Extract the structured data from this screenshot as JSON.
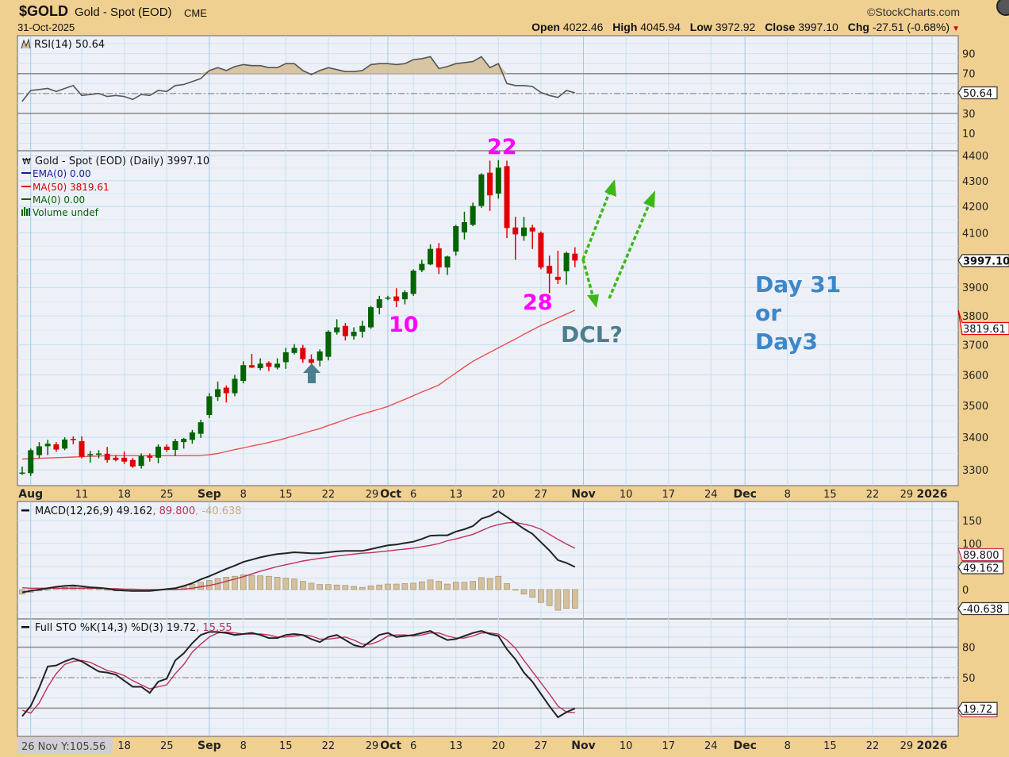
{
  "header": {
    "symbol": "$GOLD",
    "name": "Gold - Spot (EOD)",
    "exchange": "CME",
    "date": "31-Oct-2025",
    "copyright": "©StockCharts.com",
    "open_label": "Open",
    "open": "4022.46",
    "high_label": "High",
    "high": "4045.94",
    "low_label": "Low",
    "low": "3972.92",
    "close_label": "Close",
    "close": "3997.10",
    "chg_label": "Chg",
    "chg": "-27.51 (-0.68%)",
    "chg_direction": "down"
  },
  "legends": {
    "rsi": "RSI(14) 50.64",
    "price": "Gold - Spot (EOD) (Daily) 3997.10",
    "ema": "EMA(0) 0.00",
    "ma50": "MA(50) 3819.61",
    "ma0": "MA(0) 0.00",
    "volume": "Volume undef",
    "macd_name": "MACD(12,26,9) 49.162",
    "macd_signal": ", 89.800",
    "macd_hist": ", -40.638",
    "sto_name": "Full STO %K(14,3) %D(3) 19.72",
    "sto_d": ", 15.55"
  },
  "cursor_readout": "26 Nov Y:105.56",
  "annotations": {
    "peak_label": "22",
    "low_label_10": "10",
    "low_label_28": "28",
    "dcl": "DCL?",
    "day_line1": "Day 31",
    "day_line2": "or",
    "day_line3": "Day3",
    "magenta": "#ff00ff",
    "dcl_color": "#4a7f8f",
    "day_color": "#3d87c9",
    "arrow_color": "#3cb814",
    "marker_arrow_color": "#4a7f8f"
  },
  "colors": {
    "background": "#f0d091",
    "panel": "#eef0f8",
    "up_candle": "#006400",
    "down_candle": "#e00000",
    "ma50": "#e85050",
    "macd": "#222222",
    "signal": "#c0305a",
    "histogram": "#d4c09a",
    "rsi_fill": "#d4c09a"
  },
  "chart_data": [
    {
      "type": "line",
      "title": "RSI(14) 50.64",
      "ylim": [
        0,
        100
      ],
      "y_ticks": [
        90,
        70,
        30,
        10
      ],
      "reference_lines": [
        70,
        50,
        30
      ],
      "last_value_tag": "50.64",
      "values": [
        42,
        53,
        54,
        55,
        52,
        55,
        58,
        48,
        49,
        50,
        47,
        48,
        47,
        44,
        49,
        48,
        53,
        52,
        58,
        59,
        62,
        65,
        73,
        76,
        73,
        77,
        79,
        78,
        78,
        76,
        76,
        80,
        80,
        73,
        69,
        73,
        76,
        74,
        72,
        72,
        73,
        79,
        80,
        80,
        79,
        80,
        84,
        85,
        87,
        75,
        77,
        80,
        81,
        82,
        87,
        76,
        80,
        60,
        58,
        58,
        57,
        51,
        48,
        46,
        53,
        50.64
      ]
    },
    {
      "type": "candlestick",
      "title": "Gold - Spot (EOD) (Daily) 3997.10",
      "scale": "log",
      "ylim": [
        3250,
        4450
      ],
      "y_ticks": [
        4400,
        4300,
        4200,
        4100,
        3900,
        3800,
        3700,
        3600,
        3500,
        3400,
        3300
      ],
      "last_value_tags": [
        "3997.10",
        "3819.61"
      ],
      "dates": [
        "2025-07-31",
        "2025-08-01",
        "2025-08-04",
        "2025-08-05",
        "2025-08-06",
        "2025-08-07",
        "2025-08-08",
        "2025-08-11",
        "2025-08-12",
        "2025-08-13",
        "2025-08-14",
        "2025-08-15",
        "2025-08-18",
        "2025-08-19",
        "2025-08-20",
        "2025-08-21",
        "2025-08-22",
        "2025-08-25",
        "2025-08-26",
        "2025-08-27",
        "2025-08-28",
        "2025-08-29",
        "2025-09-02",
        "2025-09-03",
        "2025-09-04",
        "2025-09-05",
        "2025-09-08",
        "2025-09-09",
        "2025-09-10",
        "2025-09-11",
        "2025-09-12",
        "2025-09-15",
        "2025-09-16",
        "2025-09-17",
        "2025-09-18",
        "2025-09-19",
        "2025-09-22",
        "2025-09-23",
        "2025-09-24",
        "2025-09-25",
        "2025-09-26",
        "2025-09-29",
        "2025-09-30",
        "2025-10-01",
        "2025-10-02",
        "2025-10-03",
        "2025-10-06",
        "2025-10-07",
        "2025-10-08",
        "2025-10-09",
        "2025-10-10",
        "2025-10-13",
        "2025-10-14",
        "2025-10-15",
        "2025-10-16",
        "2025-10-17",
        "2025-10-20",
        "2025-10-21",
        "2025-10-22",
        "2025-10-23",
        "2025-10-24",
        "2025-10-27",
        "2025-10-28",
        "2025-10-29",
        "2025-10-30",
        "2025-10-31"
      ],
      "ohlc": [
        [
          3290,
          3310,
          3285,
          3292
        ],
        [
          3290,
          3365,
          3282,
          3360
        ],
        [
          3345,
          3385,
          3335,
          3372
        ],
        [
          3372,
          3392,
          3345,
          3380
        ],
        [
          3378,
          3385,
          3355,
          3362
        ],
        [
          3365,
          3400,
          3360,
          3393
        ],
        [
          3395,
          3403,
          3378,
          3393
        ],
        [
          3388,
          3403,
          3335,
          3340
        ],
        [
          3344,
          3358,
          3322,
          3348
        ],
        [
          3346,
          3360,
          3335,
          3350
        ],
        [
          3349,
          3370,
          3322,
          3330
        ],
        [
          3337,
          3345,
          3326,
          3330
        ],
        [
          3337,
          3356,
          3318,
          3325
        ],
        [
          3330,
          3336,
          3306,
          3310
        ],
        [
          3312,
          3350,
          3304,
          3342
        ],
        [
          3344,
          3350,
          3325,
          3337
        ],
        [
          3337,
          3378,
          3320,
          3371
        ],
        [
          3371,
          3378,
          3355,
          3361
        ],
        [
          3361,
          3395,
          3342,
          3388
        ],
        [
          3385,
          3398,
          3365,
          3395
        ],
        [
          3392,
          3423,
          3380,
          3415
        ],
        [
          3411,
          3455,
          3398,
          3447
        ],
        [
          3470,
          3540,
          3460,
          3530
        ],
        [
          3528,
          3578,
          3515,
          3553
        ],
        [
          3558,
          3565,
          3510,
          3540
        ],
        [
          3540,
          3600,
          3530,
          3587
        ],
        [
          3580,
          3645,
          3572,
          3632
        ],
        [
          3632,
          3670,
          3622,
          3624
        ],
        [
          3622,
          3655,
          3615,
          3637
        ],
        [
          3640,
          3645,
          3612,
          3627
        ],
        [
          3624,
          3655,
          3618,
          3637
        ],
        [
          3642,
          3690,
          3620,
          3675
        ],
        [
          3673,
          3703,
          3668,
          3690
        ],
        [
          3690,
          3700,
          3640,
          3652
        ],
        [
          3652,
          3668,
          3635,
          3640
        ],
        [
          3647,
          3685,
          3628,
          3678
        ],
        [
          3660,
          3750,
          3648,
          3745
        ],
        [
          3743,
          3788,
          3735,
          3760
        ],
        [
          3765,
          3775,
          3715,
          3730
        ],
        [
          3730,
          3760,
          3718,
          3745
        ],
        [
          3745,
          3783,
          3725,
          3765
        ],
        [
          3760,
          3835,
          3755,
          3830
        ],
        [
          3828,
          3870,
          3805,
          3858
        ],
        [
          3862,
          3870,
          3855,
          3864
        ],
        [
          3868,
          3897,
          3830,
          3852
        ],
        [
          3858,
          3890,
          3840,
          3883
        ],
        [
          3877,
          3965,
          3870,
          3960
        ],
        [
          3962,
          4000,
          3955,
          3985
        ],
        [
          3983,
          4057,
          3980,
          4040
        ],
        [
          4042,
          4062,
          3948,
          3972
        ],
        [
          3972,
          4015,
          3945,
          4012
        ],
        [
          4030,
          4130,
          4015,
          4125
        ],
        [
          4102,
          4180,
          4075,
          4140
        ],
        [
          4130,
          4215,
          4125,
          4202
        ],
        [
          4202,
          4330,
          4195,
          4325
        ],
        [
          4332,
          4380,
          4183,
          4243
        ],
        [
          4250,
          4382,
          4230,
          4352
        ],
        [
          4358,
          4380,
          4080,
          4118
        ],
        [
          4120,
          4160,
          4000,
          4094
        ],
        [
          4088,
          4160,
          4070,
          4120
        ],
        [
          4120,
          4130,
          4040,
          4105
        ],
        [
          4100,
          4105,
          3965,
          3972
        ],
        [
          3978,
          4015,
          3880,
          3950
        ],
        [
          3938,
          4033,
          3912,
          3927
        ],
        [
          3958,
          4030,
          3910,
          4025
        ],
        [
          4022.46,
          4045.94,
          3972.92,
          3997.1
        ]
      ],
      "ma50": [
        3333,
        3334,
        3335,
        3336,
        3337,
        3338,
        3339,
        3340,
        3341,
        3342,
        3343,
        3343,
        3343,
        3343,
        3343,
        3343,
        3343,
        3343,
        3343,
        3343,
        3343,
        3344,
        3346,
        3350,
        3356,
        3362,
        3367,
        3373,
        3378,
        3384,
        3390,
        3397,
        3405,
        3412,
        3420,
        3427,
        3437,
        3446,
        3456,
        3465,
        3473,
        3481,
        3489,
        3497,
        3509,
        3520,
        3532,
        3544,
        3555,
        3567,
        3587,
        3606,
        3626,
        3645,
        3660,
        3675,
        3690,
        3705,
        3720,
        3736,
        3751,
        3766,
        3779,
        3793,
        3806,
        3819.61
      ],
      "x_ticks": [
        {
          "date": "2025-08-01",
          "label": "Aug",
          "month": true
        },
        {
          "date": "2025-08-11",
          "label": "11"
        },
        {
          "date": "2025-08-18",
          "label": "18"
        },
        {
          "date": "2025-08-25",
          "label": "25"
        },
        {
          "date": "2025-09-02",
          "label": "Sep",
          "month": true
        },
        {
          "date": "2025-09-08",
          "label": "8"
        },
        {
          "date": "2025-09-15",
          "label": "15"
        },
        {
          "date": "2025-09-22",
          "label": "22"
        },
        {
          "date": "2025-09-29",
          "label": "29"
        },
        {
          "date": "2025-10-01",
          "label": "Oct",
          "month": true
        },
        {
          "date": "2025-10-06",
          "label": "6"
        },
        {
          "date": "2025-10-13",
          "label": "13"
        },
        {
          "date": "2025-10-20",
          "label": "20"
        },
        {
          "date": "2025-10-27",
          "label": "27"
        },
        {
          "date": "2025-11-03",
          "label": "Nov",
          "month": true
        },
        {
          "date": "2025-11-10",
          "label": "10"
        },
        {
          "date": "2025-11-17",
          "label": "17"
        },
        {
          "date": "2025-11-24",
          "label": "24"
        },
        {
          "date": "2025-12-01",
          "label": "Dec",
          "month": true
        },
        {
          "date": "2025-12-08",
          "label": "8"
        },
        {
          "date": "2025-12-15",
          "label": "15"
        },
        {
          "date": "2025-12-22",
          "label": "22"
        },
        {
          "date": "2025-12-29",
          "label": "29"
        },
        {
          "date": "2026-01-02",
          "label": "2026",
          "month": true
        }
      ]
    },
    {
      "type": "line",
      "title": "MACD(12,26,9) 49.162, 89.800, -40.638",
      "y_ticks": [
        150,
        100,
        0
      ],
      "last_value_tags": [
        "89.800",
        "49.162",
        "-40.638"
      ],
      "series": [
        {
          "name": "MACD",
          "values": [
            -6,
            -3,
            0,
            3,
            6,
            8,
            9,
            7,
            5,
            4,
            2,
            -1,
            -2,
            -3,
            -3,
            -3,
            -1,
            1,
            3,
            8,
            14,
            22,
            29,
            37,
            45,
            52,
            60,
            65,
            70,
            74,
            77,
            79,
            81,
            80,
            79,
            79,
            81,
            83,
            84,
            84,
            84,
            88,
            92,
            96,
            98,
            101,
            104,
            110,
            117,
            118,
            118,
            126,
            131,
            138,
            154,
            160,
            170,
            158,
            145,
            132,
            121,
            103,
            85,
            64,
            58,
            49.162
          ]
        },
        {
          "name": "Signal",
          "values": [
            4,
            3,
            3,
            3,
            3,
            3,
            3,
            3,
            3,
            3,
            2,
            2,
            1,
            1,
            0,
            0,
            0,
            0,
            0,
            1,
            3,
            6,
            9,
            13,
            18,
            23,
            28,
            34,
            40,
            45,
            50,
            54,
            58,
            62,
            65,
            68,
            70,
            73,
            75,
            77,
            79,
            80,
            82,
            84,
            86,
            88,
            90,
            93,
            96,
            100,
            106,
            110,
            115,
            120,
            128,
            136,
            141,
            145,
            146,
            142,
            138,
            131,
            120,
            109,
            99,
            89.8
          ]
        },
        {
          "name": "Histogram",
          "values": [
            -10,
            -6,
            -3,
            0,
            3,
            5,
            6,
            4,
            2,
            1,
            0,
            -3,
            -3,
            -4,
            -3,
            -3,
            -1,
            1,
            3,
            7,
            11,
            16,
            20,
            24,
            27,
            29,
            32,
            31,
            30,
            29,
            27,
            25,
            23,
            18,
            14,
            11,
            11,
            10,
            9,
            7,
            5,
            8,
            10,
            12,
            12,
            13,
            14,
            17,
            21,
            18,
            12,
            16,
            16,
            18,
            26,
            24,
            29,
            13,
            -1,
            -10,
            -17,
            -28,
            -35,
            -45,
            -41,
            -40.638
          ]
        }
      ]
    },
    {
      "type": "line",
      "title": "Full STO %K(14,3) %D(3) 19.72, 15.55",
      "ylim": [
        0,
        100
      ],
      "y_ticks": [
        80,
        50
      ],
      "reference_lines": [
        80,
        50,
        20
      ],
      "last_value_tag": "19.72",
      "series": [
        {
          "name": "%K",
          "values": [
            12,
            22,
            40,
            61,
            62,
            66,
            69,
            66,
            61,
            56,
            55,
            53,
            47,
            41,
            41,
            35,
            46,
            49,
            67,
            74,
            84,
            92,
            95,
            95,
            94,
            92,
            93,
            94,
            92,
            89,
            89,
            92,
            93,
            92,
            88,
            85,
            90,
            92,
            87,
            82,
            80,
            86,
            92,
            94,
            90,
            91,
            92,
            94,
            96,
            91,
            87,
            88,
            91,
            94,
            96,
            93,
            91,
            78,
            68,
            55,
            46,
            34,
            22,
            11,
            16,
            19.72
          ]
        },
        {
          "name": "%D",
          "values": [
            18,
            15,
            25,
            41,
            54,
            63,
            66,
            67,
            65,
            61,
            57,
            55,
            52,
            47,
            43,
            39,
            41,
            43,
            54,
            63,
            75,
            83,
            90,
            94,
            95,
            94,
            93,
            93,
            93,
            92,
            90,
            90,
            91,
            92,
            91,
            88,
            88,
            89,
            90,
            87,
            83,
            83,
            86,
            91,
            92,
            92,
            91,
            92,
            94,
            94,
            91,
            89,
            89,
            91,
            94,
            94,
            93,
            87,
            79,
            67,
            56,
            45,
            34,
            22,
            16,
            15.55
          ]
        }
      ]
    }
  ]
}
